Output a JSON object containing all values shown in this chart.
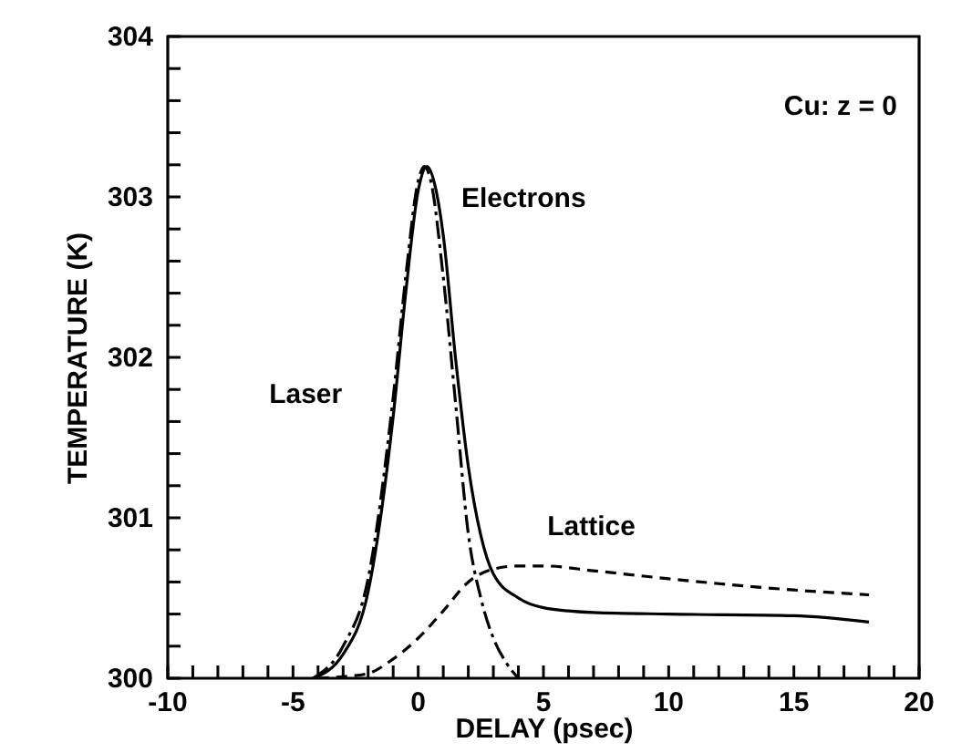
{
  "chart_data": {
    "type": "line",
    "xlabel": "DELAY (psec)",
    "ylabel": "TEMPERATURE (K)",
    "xlim": [
      -10,
      20
    ],
    "ylim": [
      300,
      304
    ],
    "xticks": [
      -10,
      {
        "value": -9,
        "label": null
      },
      {
        "value": -8,
        "label": null
      },
      {
        "value": -7,
        "label": null
      },
      {
        "value": -6,
        "label": null
      },
      -5,
      {
        "value": -4,
        "label": null
      },
      {
        "value": -3,
        "label": null
      },
      {
        "value": -2,
        "label": null
      },
      {
        "value": -1,
        "label": null
      },
      0,
      {
        "value": 1,
        "label": null
      },
      {
        "value": 2,
        "label": null
      },
      {
        "value": 3,
        "label": null
      },
      {
        "value": 4,
        "label": null
      },
      5,
      {
        "value": 6,
        "label": null
      },
      {
        "value": 7,
        "label": null
      },
      {
        "value": 8,
        "label": null
      },
      {
        "value": 9,
        "label": null
      },
      10,
      {
        "value": 11,
        "label": null
      },
      {
        "value": 12,
        "label": null
      },
      {
        "value": 13,
        "label": null
      },
      {
        "value": 14,
        "label": null
      },
      15,
      {
        "value": 16,
        "label": null
      },
      {
        "value": 17,
        "label": null
      },
      {
        "value": 18,
        "label": null
      },
      {
        "value": 19,
        "label": null
      },
      20
    ],
    "yticks": [
      300,
      {
        "value": 300.2,
        "label": null
      },
      {
        "value": 300.4,
        "label": null
      },
      {
        "value": 300.6,
        "label": null
      },
      {
        "value": 300.8,
        "label": null
      },
      301,
      {
        "value": 301.2,
        "label": null
      },
      {
        "value": 301.4,
        "label": null
      },
      {
        "value": 301.6,
        "label": null
      },
      {
        "value": 301.8,
        "label": null
      },
      302,
      {
        "value": 302.2,
        "label": null
      },
      {
        "value": 302.4,
        "label": null
      },
      {
        "value": 302.6,
        "label": null
      },
      {
        "value": 302.8,
        "label": null
      },
      303,
      {
        "value": 303.2,
        "label": null
      },
      {
        "value": 303.4,
        "label": null
      },
      {
        "value": 303.6,
        "label": null
      },
      {
        "value": 303.8,
        "label": null
      },
      304
    ],
    "grid": false,
    "marker": "none",
    "annotations": [
      "Cu: z = 0"
    ],
    "series": [
      {
        "name": "Laser",
        "color": "#000000",
        "line_style": "dashdot",
        "x": [
          -4.2,
          -3,
          -2,
          -1,
          -0.5,
          0,
          0.25,
          0.5,
          1,
          1.5,
          2,
          2.5,
          3,
          3.5,
          4
        ],
        "values": [
          300.0,
          300.2,
          300.62,
          301.75,
          302.5,
          303.1,
          303.19,
          303.1,
          302.5,
          301.7,
          300.9,
          300.5,
          300.25,
          300.1,
          300.0
        ]
      },
      {
        "name": "Electrons",
        "color": "#000000",
        "line_style": "solid",
        "x": [
          -4.2,
          -3,
          -2,
          -1,
          -0.5,
          0,
          0.35,
          0.7,
          1,
          1.5,
          2,
          2.5,
          3,
          4,
          5,
          7,
          10,
          15,
          18
        ],
        "values": [
          300.0,
          300.15,
          300.54,
          301.63,
          302.4,
          303.04,
          303.19,
          303.05,
          302.76,
          301.98,
          301.32,
          300.89,
          300.65,
          300.5,
          300.44,
          300.41,
          300.4,
          300.39,
          300.35
        ]
      },
      {
        "name": "Lattice",
        "color": "#000000",
        "line_style": "dashed",
        "x": [
          -4,
          -3,
          -2,
          -1,
          0,
          1,
          2,
          3,
          4,
          5,
          7,
          10,
          15,
          18
        ],
        "values": [
          300.0,
          300.01,
          300.03,
          300.12,
          300.25,
          300.42,
          300.6,
          300.68,
          300.7,
          300.7,
          300.67,
          300.62,
          300.55,
          300.52
        ]
      }
    ]
  }
}
